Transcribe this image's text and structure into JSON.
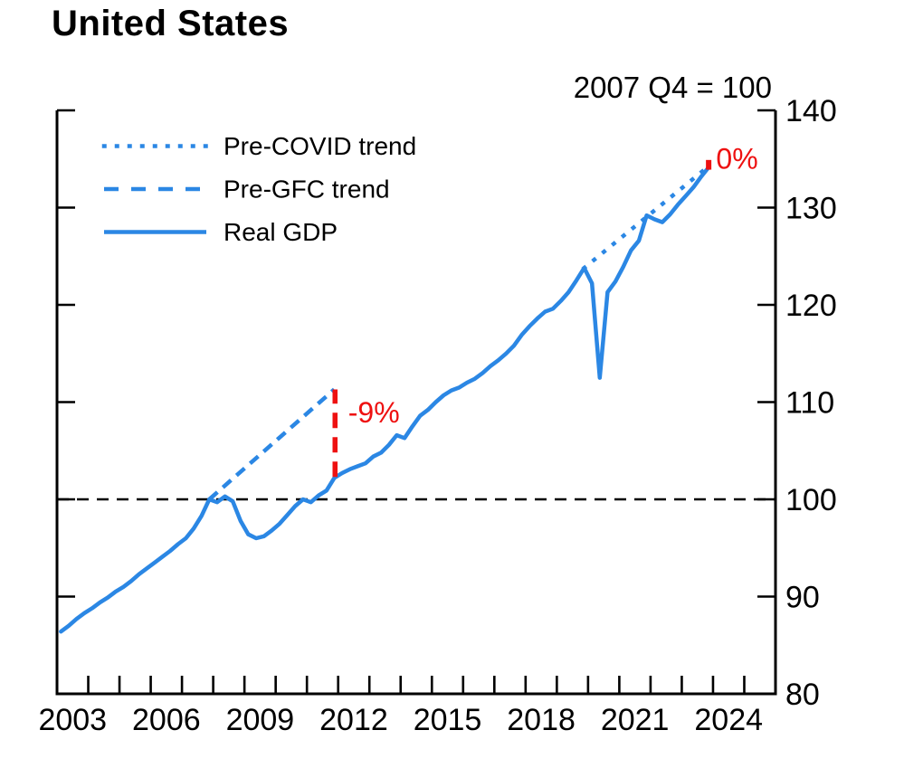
{
  "chart_data": {
    "type": "line",
    "title": "United States",
    "subtitle": "2007 Q4 = 100",
    "colors": {
      "line_blue": "#2b87e4",
      "annotation_red": "#ee1111",
      "axis_black": "#000000"
    },
    "x_axis": {
      "min": 2003,
      "max": 2026,
      "tick_interval_years": 1,
      "label_years": [
        2003,
        2006,
        2009,
        2012,
        2015,
        2018,
        2021,
        2024
      ]
    },
    "y_axis": {
      "min": 80,
      "max": 140,
      "ticks": [
        80,
        90,
        100,
        110,
        120,
        130,
        140
      ]
    },
    "reference_line": {
      "y": 100,
      "style": "dashed",
      "color": "#000000"
    },
    "legend": {
      "position": "top-left",
      "order": [
        "Pre-COVID trend",
        "Pre-GFC trend",
        "Real GDP"
      ]
    },
    "series": [
      {
        "name": "Pre-COVID trend",
        "style": "dotted",
        "color": "#2b87e4",
        "points": [
          [
            2019.875,
            123.8
          ],
          [
            2023.875,
            134.3
          ]
        ]
      },
      {
        "name": "Pre-GFC trend",
        "style": "dashed",
        "color": "#2b87e4",
        "points": [
          [
            2007.875,
            100.0
          ],
          [
            2011.875,
            111.3
          ]
        ]
      },
      {
        "name": "Real GDP",
        "style": "solid",
        "color": "#2b87e4",
        "x_start": 2003.125,
        "x_step": 0.25,
        "values": [
          86.4,
          87.0,
          87.7,
          88.3,
          88.8,
          89.4,
          89.9,
          90.5,
          91.0,
          91.6,
          92.3,
          92.9,
          93.5,
          94.1,
          94.7,
          95.4,
          96.0,
          97.0,
          98.3,
          100.0,
          99.7,
          100.3,
          99.8,
          97.8,
          96.4,
          96.0,
          96.2,
          96.8,
          97.5,
          98.4,
          99.3,
          100.0,
          99.7,
          100.4,
          100.9,
          102.2,
          102.7,
          103.1,
          103.4,
          103.7,
          104.4,
          104.8,
          105.6,
          106.6,
          106.3,
          107.5,
          108.6,
          109.2,
          110.0,
          110.7,
          111.2,
          111.5,
          112.0,
          112.4,
          113.0,
          113.7,
          114.3,
          115.0,
          115.8,
          116.9,
          117.8,
          118.6,
          119.3,
          119.6,
          120.4,
          121.3,
          122.5,
          123.8,
          122.2,
          112.5,
          121.3,
          122.4,
          123.9,
          125.6,
          126.6,
          129.2,
          128.8,
          128.5,
          129.3,
          130.3,
          131.2,
          132.1,
          133.2,
          134.2
        ]
      }
    ],
    "annotations": [
      {
        "id": "gfc-gap-line",
        "type": "vline",
        "x": 2011.9,
        "y1": 102.3,
        "y2": 111.3,
        "style": "dashed",
        "color": "#ee1111"
      },
      {
        "id": "gfc-gap-label",
        "type": "text",
        "text": "-9%",
        "x": 2012.32,
        "y": 107.9,
        "color": "#ee1111"
      },
      {
        "id": "covid-gap-tick",
        "type": "vline",
        "x": 2023.86,
        "y1": 133.9,
        "y2": 134.9,
        "style": "solid",
        "color": "#ee1111"
      },
      {
        "id": "covid-gap-label",
        "type": "text",
        "text": "0%",
        "x": 2024.1,
        "y": 134.0,
        "color": "#ee1111"
      }
    ]
  }
}
